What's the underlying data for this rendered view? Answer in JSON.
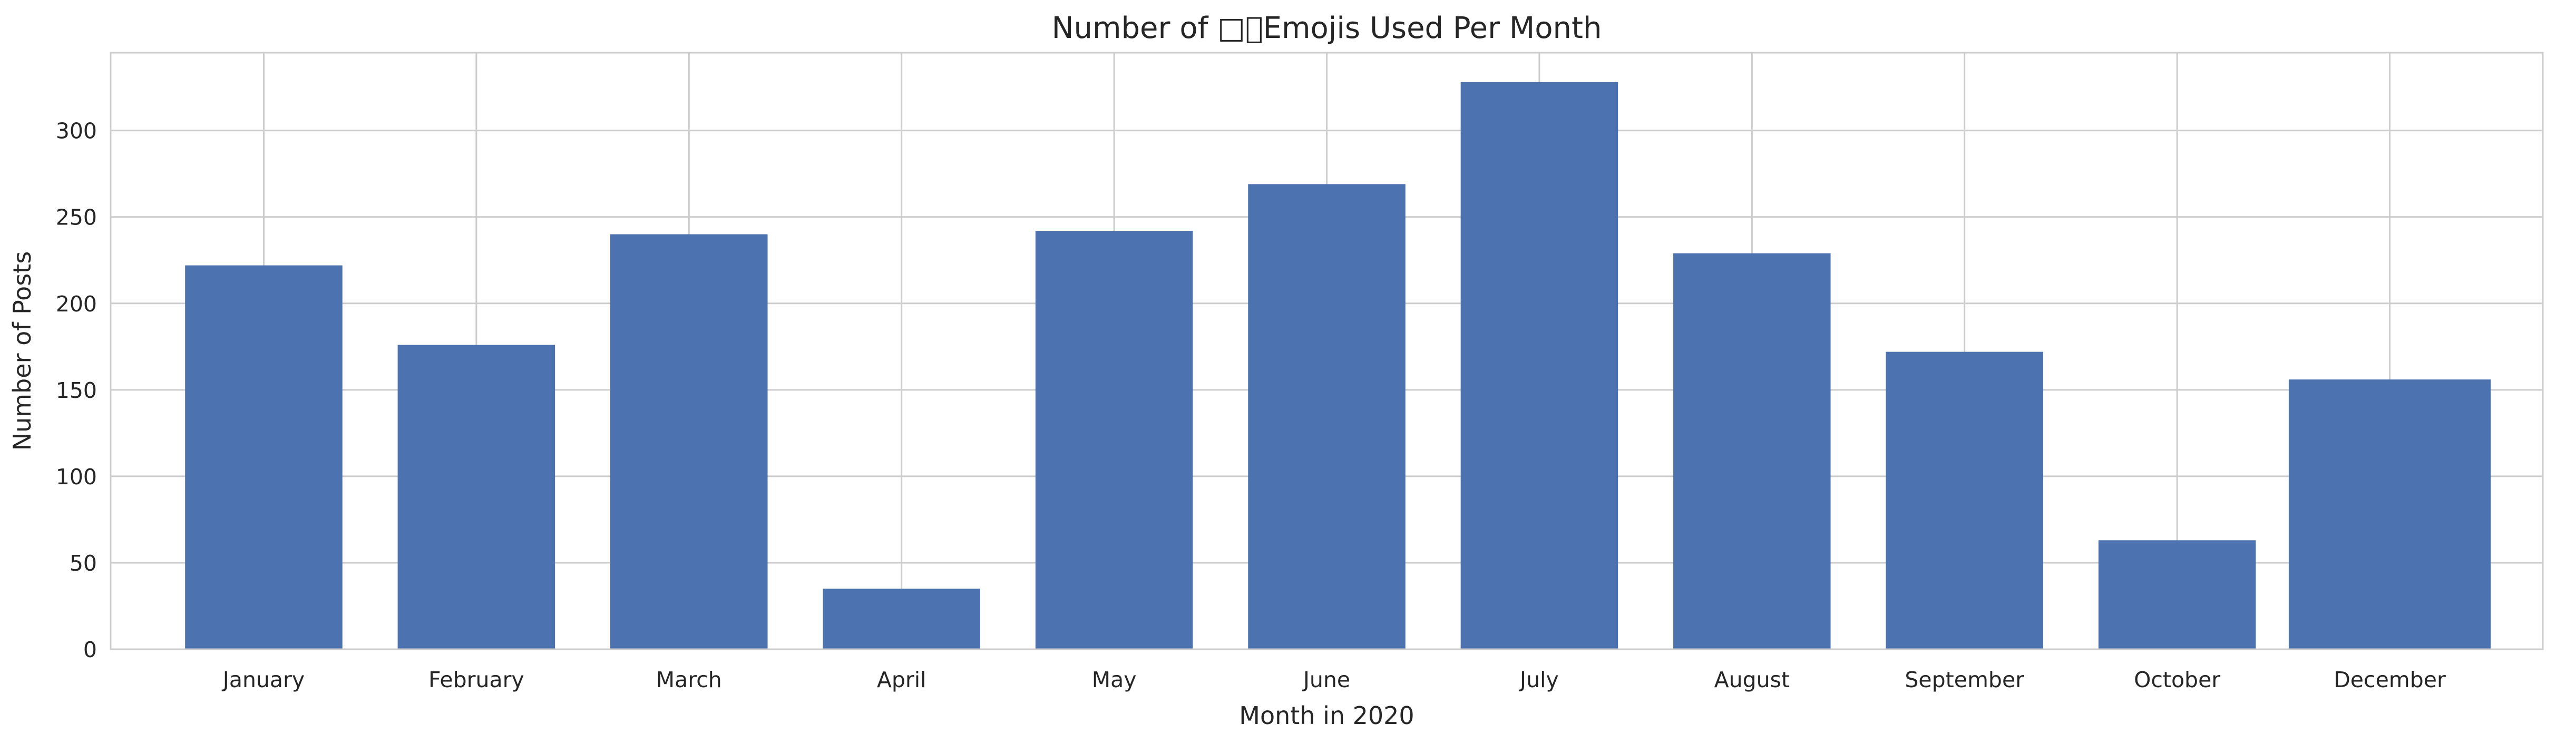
{
  "chart_data": {
    "type": "bar",
    "title": "Number of □⃦Emojis Used Per Month",
    "xlabel": "Month in 2020",
    "ylabel": "Number of Posts",
    "categories": [
      "January",
      "February",
      "March",
      "April",
      "May",
      "June",
      "July",
      "August",
      "September",
      "October",
      "December"
    ],
    "values": [
      222,
      176,
      240,
      35,
      242,
      269,
      328,
      229,
      172,
      63,
      156
    ],
    "bar_width_ratio": [
      0.74,
      0.74,
      0.74,
      0.74,
      0.74,
      0.74,
      0.74,
      0.74,
      0.74,
      0.74,
      0.95
    ],
    "ylim": [
      0,
      345
    ],
    "yticks": [
      0,
      50,
      100,
      150,
      200,
      250,
      300
    ],
    "grid": true,
    "colors": {
      "bar": "#4c72b0",
      "grid": "#cccccc",
      "axis": "#cccccc",
      "background": "#ffffff"
    }
  }
}
